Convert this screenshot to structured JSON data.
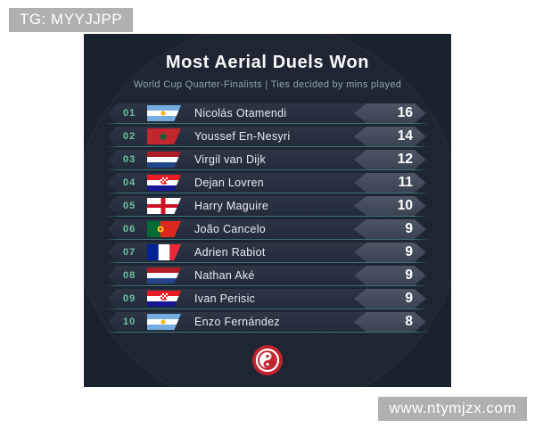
{
  "watermarks": {
    "top_left": "TG: MYYJJPP",
    "bottom_right": "www.ntymjzx.com"
  },
  "header": {
    "title": "Most Aerial Duels Won",
    "subtitle": "World Cup Quarter-Finalists | Ties decided by mins played"
  },
  "table": {
    "rows": [
      {
        "rank": "01",
        "country": "argentina",
        "player": "Nicolás Otamendi",
        "value": "16"
      },
      {
        "rank": "02",
        "country": "morocco",
        "player": "Youssef En-Nesyri",
        "value": "14"
      },
      {
        "rank": "03",
        "country": "netherlands",
        "player": "Virgil van Dijk",
        "value": "12"
      },
      {
        "rank": "04",
        "country": "croatia",
        "player": "Dejan Lovren",
        "value": "11"
      },
      {
        "rank": "05",
        "country": "england",
        "player": "Harry Maguire",
        "value": "10"
      },
      {
        "rank": "06",
        "country": "portugal",
        "player": "João Cancelo",
        "value": "9"
      },
      {
        "rank": "07",
        "country": "france",
        "player": "Adrien Rabiot",
        "value": "9"
      },
      {
        "rank": "08",
        "country": "netherlands",
        "player": "Nathan Aké",
        "value": "9"
      },
      {
        "rank": "09",
        "country": "croatia",
        "player": "Ivan Perisic",
        "value": "9"
      },
      {
        "rank": "10",
        "country": "argentina",
        "player": "Enzo Fernández",
        "value": "8"
      }
    ]
  },
  "footer": {
    "logo": "red-swirl-crest-logo"
  },
  "colors": {
    "page_bg": "#ffffff",
    "card_bg": "#1a212f",
    "accent_teal": "#6fc0a2",
    "subtitle_teal_gray": "#8ea9a6",
    "row_bg": "#28313f",
    "value_badge_bg": "#46505f",
    "underline_teal": "#56b7ab",
    "logo_red": "#c1242d",
    "watermark_gray": "#b0b0b0"
  },
  "chart_data": {
    "type": "table",
    "title": "Most Aerial Duels Won",
    "subtitle": "World Cup Quarter-Finalists | Ties decided by mins played",
    "columns": [
      "rank",
      "country",
      "player",
      "aerial_duels_won"
    ],
    "categories": [
      "Nicolás Otamendi",
      "Youssef En-Nesyri",
      "Virgil van Dijk",
      "Dejan Lovren",
      "Harry Maguire",
      "João Cancelo",
      "Adrien Rabiot",
      "Nathan Aké",
      "Ivan Perisic",
      "Enzo Fernández"
    ],
    "values": [
      16,
      14,
      12,
      11,
      10,
      9,
      9,
      9,
      9,
      8
    ],
    "countries": [
      "Argentina",
      "Morocco",
      "Netherlands",
      "Croatia",
      "England",
      "Portugal",
      "France",
      "Netherlands",
      "Croatia",
      "Argentina"
    ]
  }
}
